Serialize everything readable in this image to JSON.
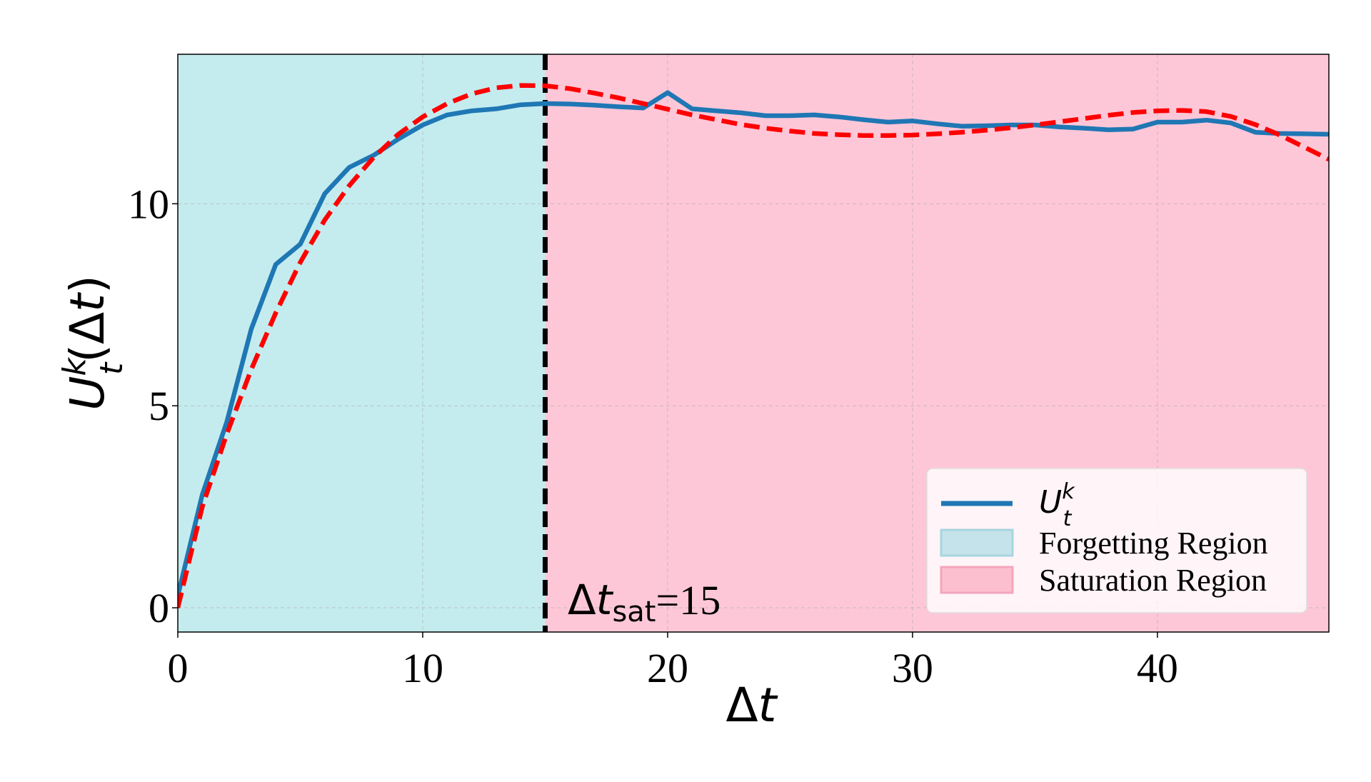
{
  "chart_data": {
    "type": "line",
    "xlabel": {
      "main": "Δ",
      "italic": "t"
    },
    "ylabel": {
      "main": "U",
      "sup": "k",
      "sub": "t",
      "paren_open": "(Δ",
      "italic": "t",
      "paren_close": ")"
    },
    "xlim": [
      0,
      47
    ],
    "ylim": [
      -0.6,
      13.7
    ],
    "xticks": [
      0,
      10,
      20,
      30,
      40
    ],
    "yticks": [
      0,
      5,
      10
    ],
    "grid": true,
    "regions": [
      {
        "name": "Forgetting Region",
        "x_start": 0,
        "x_end": 15,
        "color": "#c4ecef",
        "legend_color": "#c5e3ea",
        "legend_edge": "#a6d6de"
      },
      {
        "name": "Saturation Region",
        "x_start": 15,
        "x_end": 47,
        "color": "#fec7d8",
        "legend_color": "#fcbfd0",
        "legend_edge": "#f4a5bd"
      }
    ],
    "threshold": {
      "x": 15,
      "label_main": "Δ",
      "label_italic": "t",
      "label_sub": "sat",
      "label_value": "=15",
      "color": "#000000"
    },
    "series": [
      {
        "name": {
          "main": "U",
          "sup": "k",
          "sub": "t"
        },
        "style": "solid",
        "color": "#1f77b4",
        "x": [
          0,
          1,
          2,
          3,
          4,
          5,
          6,
          7,
          8,
          9,
          10,
          11,
          12,
          13,
          14,
          15,
          16,
          17,
          18,
          19,
          20,
          21,
          22,
          23,
          24,
          25,
          26,
          27,
          28,
          29,
          30,
          31,
          32,
          33,
          34,
          35,
          36,
          37,
          38,
          39,
          40,
          41,
          42,
          43,
          44,
          45,
          46,
          47
        ],
        "y": [
          0.3,
          2.8,
          4.6,
          6.9,
          8.5,
          9.0,
          10.25,
          10.9,
          11.2,
          11.6,
          11.95,
          12.2,
          12.3,
          12.35,
          12.45,
          12.48,
          12.47,
          12.44,
          12.4,
          12.37,
          12.75,
          12.35,
          12.3,
          12.25,
          12.18,
          12.18,
          12.2,
          12.15,
          12.08,
          12.02,
          12.05,
          11.98,
          11.92,
          11.93,
          11.95,
          11.95,
          11.9,
          11.87,
          11.83,
          11.85,
          12.02,
          12.02,
          12.07,
          12.0,
          11.77,
          11.74,
          11.73,
          11.72
        ]
      },
      {
        "name": "",
        "style": "dashed",
        "color": "#ff0000",
        "x": [
          0,
          1,
          2,
          3,
          4,
          5,
          6,
          7,
          8,
          9,
          10,
          11,
          12,
          13,
          14,
          15,
          16,
          17,
          18,
          19,
          20,
          21,
          22,
          23,
          24,
          25,
          26,
          27,
          28,
          29,
          30,
          31,
          32,
          33,
          34,
          35,
          36,
          37,
          38,
          39,
          40,
          41,
          42,
          43,
          44,
          45,
          46,
          47
        ],
        "y": [
          0.0,
          2.5,
          4.3,
          5.9,
          7.3,
          8.55,
          9.6,
          10.45,
          11.15,
          11.72,
          12.15,
          12.48,
          12.72,
          12.87,
          12.93,
          12.92,
          12.85,
          12.74,
          12.62,
          12.48,
          12.34,
          12.2,
          12.08,
          11.96,
          11.87,
          11.8,
          11.74,
          11.71,
          11.69,
          11.69,
          11.7,
          11.73,
          11.77,
          11.82,
          11.88,
          11.95,
          12.03,
          12.11,
          12.19,
          12.26,
          12.3,
          12.31,
          12.28,
          12.16,
          11.96,
          11.7,
          11.4,
          11.1
        ]
      }
    ],
    "legend": {
      "position": "lower-right"
    }
  }
}
